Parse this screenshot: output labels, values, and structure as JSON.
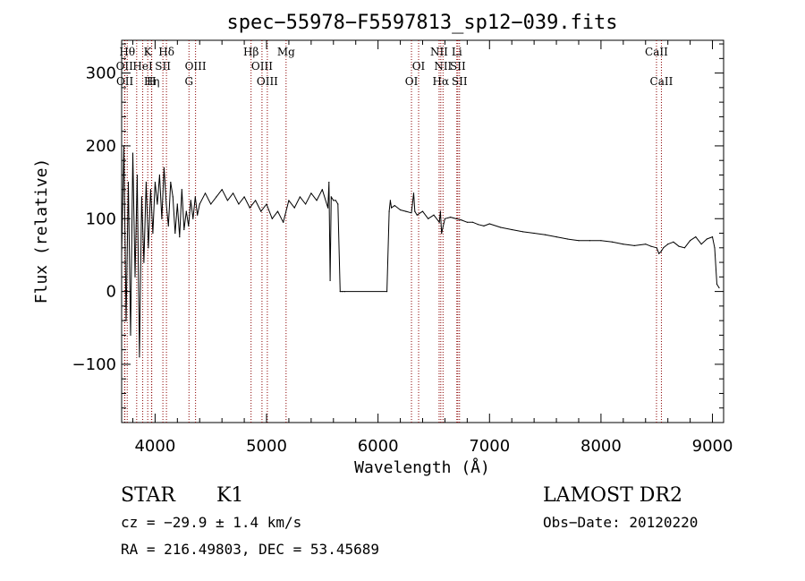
{
  "chart_data": {
    "type": "line",
    "title": "spec−55978−F5597813_sp12−039.fits",
    "xlabel": "Wavelength (Å)",
    "ylabel": "Flux (relative)",
    "xlim": [
      3700,
      9100
    ],
    "ylim": [
      -180,
      345
    ],
    "x_ticks": [
      4000,
      5000,
      6000,
      7000,
      8000,
      9000
    ],
    "x_tick_labels": [
      "4000",
      "5000",
      "6000",
      "7000",
      "8000",
      "9000"
    ],
    "y_ticks": [
      -100,
      0,
      100,
      200,
      300
    ],
    "y_tick_labels": [
      "−100",
      "0",
      "100",
      "200",
      "300"
    ],
    "grid": false,
    "series": [
      {
        "name": "flux",
        "x": [
          3700,
          3720,
          3740,
          3760,
          3780,
          3800,
          3820,
          3840,
          3860,
          3880,
          3900,
          3920,
          3940,
          3960,
          3980,
          4000,
          4020,
          4040,
          4060,
          4080,
          4100,
          4120,
          4140,
          4160,
          4180,
          4200,
          4220,
          4240,
          4260,
          4280,
          4300,
          4320,
          4340,
          4360,
          4380,
          4400,
          4450,
          4500,
          4550,
          4600,
          4650,
          4700,
          4750,
          4800,
          4850,
          4900,
          4950,
          5000,
          5050,
          5100,
          5150,
          5200,
          5250,
          5300,
          5350,
          5400,
          5450,
          5500,
          5550,
          5560,
          5570,
          5580,
          5600,
          5620,
          5640,
          5660,
          5680,
          5700,
          6080,
          6100,
          6110,
          6120,
          6150,
          6200,
          6250,
          6300,
          6320,
          6330,
          6350,
          6400,
          6450,
          6500,
          6550,
          6560,
          6570,
          6600,
          6650,
          6700,
          6750,
          6800,
          6850,
          6900,
          6950,
          7000,
          7100,
          7200,
          7300,
          7400,
          7500,
          7600,
          7700,
          7800,
          7900,
          8000,
          8100,
          8200,
          8300,
          8400,
          8450,
          8500,
          8520,
          8540,
          8560,
          8600,
          8650,
          8700,
          8750,
          8800,
          8850,
          8900,
          8950,
          9000,
          9020,
          9040,
          9060
        ],
        "values": [
          50,
          200,
          -40,
          150,
          -60,
          190,
          20,
          160,
          -90,
          130,
          40,
          150,
          60,
          140,
          80,
          150,
          120,
          160,
          100,
          170,
          120,
          90,
          150,
          130,
          80,
          120,
          75,
          140,
          85,
          110,
          90,
          125,
          100,
          130,
          105,
          120,
          135,
          120,
          130,
          140,
          125,
          135,
          120,
          130,
          115,
          125,
          110,
          120,
          100,
          110,
          95,
          125,
          115,
          130,
          120,
          135,
          125,
          140,
          115,
          150,
          15,
          130,
          125,
          125,
          120,
          0,
          0,
          0,
          0,
          110,
          125,
          115,
          118,
          112,
          110,
          108,
          135,
          110,
          105,
          110,
          100,
          105,
          95,
          110,
          80,
          100,
          102,
          100,
          98,
          95,
          95,
          92,
          90,
          93,
          88,
          85,
          82,
          80,
          78,
          75,
          72,
          70,
          70,
          70,
          68,
          65,
          63,
          65,
          62,
          60,
          52,
          55,
          60,
          65,
          68,
          62,
          60,
          70,
          75,
          65,
          72,
          75,
          60,
          10,
          5
        ]
      }
    ],
    "emission_lines": [
      {
        "x": 3750,
        "label": "Hθ",
        "row": 0
      },
      {
        "x": 3726,
        "label": "OII",
        "row": 1
      },
      {
        "x": 3729,
        "label": "OII",
        "row": 2
      },
      {
        "x": 3835,
        "label": "",
        "row": 0
      },
      {
        "x": 3889,
        "label": "HeI",
        "row": 1
      },
      {
        "x": 3970,
        "label": "Hη",
        "row": 2
      },
      {
        "x": 3934,
        "label": "K",
        "row": 0
      },
      {
        "x": 3968,
        "label": "H",
        "row": 2
      },
      {
        "x": 4070,
        "label": "SII",
        "row": 1
      },
      {
        "x": 4102,
        "label": "Hδ",
        "row": 0
      },
      {
        "x": 4304,
        "label": "G",
        "row": 2
      },
      {
        "x": 4363,
        "label": "OIII",
        "row": 1
      },
      {
        "x": 4861,
        "label": "Hβ",
        "row": 0
      },
      {
        "x": 4959,
        "label": "OIII",
        "row": 1
      },
      {
        "x": 5007,
        "label": "OIII",
        "row": 2
      },
      {
        "x": 5175,
        "label": "Mg",
        "row": 0
      },
      {
        "x": 6300,
        "label": "OI",
        "row": 2
      },
      {
        "x": 6364,
        "label": "OI",
        "row": 1
      },
      {
        "x": 6548,
        "label": "NII",
        "row": 0
      },
      {
        "x": 6563,
        "label": "Hα",
        "row": 2
      },
      {
        "x": 6583,
        "label": "NII",
        "row": 1
      },
      {
        "x": 6707,
        "label": "Li",
        "row": 0
      },
      {
        "x": 6716,
        "label": "SII",
        "row": 1
      },
      {
        "x": 6731,
        "label": "SII",
        "row": 2
      },
      {
        "x": 8498,
        "label": "CaII",
        "row": 0
      },
      {
        "x": 8542,
        "label": "CaII",
        "row": 2
      }
    ]
  },
  "info": {
    "classification": "STAR",
    "subclass": "K1",
    "survey": "LAMOST DR2",
    "cz": "cz = −29.9 ± 1.4 km/s",
    "obs_date": "Obs−Date: 20120220",
    "radec": "RA = 216.49803, DEC =  53.45689"
  },
  "colors": {
    "spectrum": "#000000",
    "line_marker": "#8b0000",
    "axis": "#000000",
    "background": "#ffffff"
  }
}
